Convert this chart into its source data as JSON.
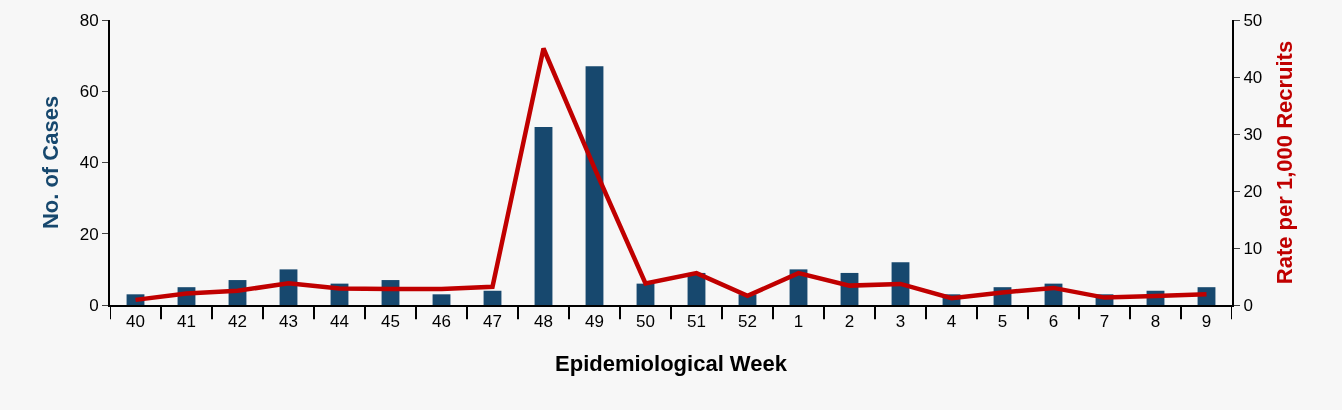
{
  "chart_data": {
    "type": "bar",
    "xlabel": "Epidemiological Week",
    "ylabel": "No. of Cases",
    "y2label": "Rate per 1,000 Recruits",
    "categories": [
      "40",
      "41",
      "42",
      "43",
      "44",
      "45",
      "46",
      "47",
      "48",
      "49",
      "50",
      "51",
      "52",
      "1",
      "2",
      "3",
      "4",
      "5",
      "6",
      "7",
      "8",
      "9"
    ],
    "series": [
      {
        "color": "#17486e",
        "values": [
          3,
          5,
          7,
          10,
          6,
          7,
          3,
          4,
          50,
          67,
          6,
          9,
          3,
          10,
          9,
          12,
          3,
          5,
          6,
          3,
          4,
          5
        ]
      },
      {
        "type": "line",
        "axis": "y2",
        "color": "#c00000",
        "values": [
          0.9,
          2,
          2.5,
          3.8,
          2.9,
          2.8,
          2.8,
          3.2,
          45,
          24,
          3.8,
          5.6,
          1.6,
          5.6,
          3.4,
          3.7,
          1.2,
          2.2,
          3,
          1.3,
          1.6,
          1.9
        ]
      }
    ],
    "ylim": [
      0,
      80
    ],
    "yticks": [
      0,
      20,
      40,
      60,
      80
    ],
    "y2lim": [
      0,
      50
    ],
    "y2ticks": [
      0,
      10,
      20,
      30,
      40,
      50
    ],
    "grid": false,
    "line_style": "solid",
    "marker": "none"
  }
}
